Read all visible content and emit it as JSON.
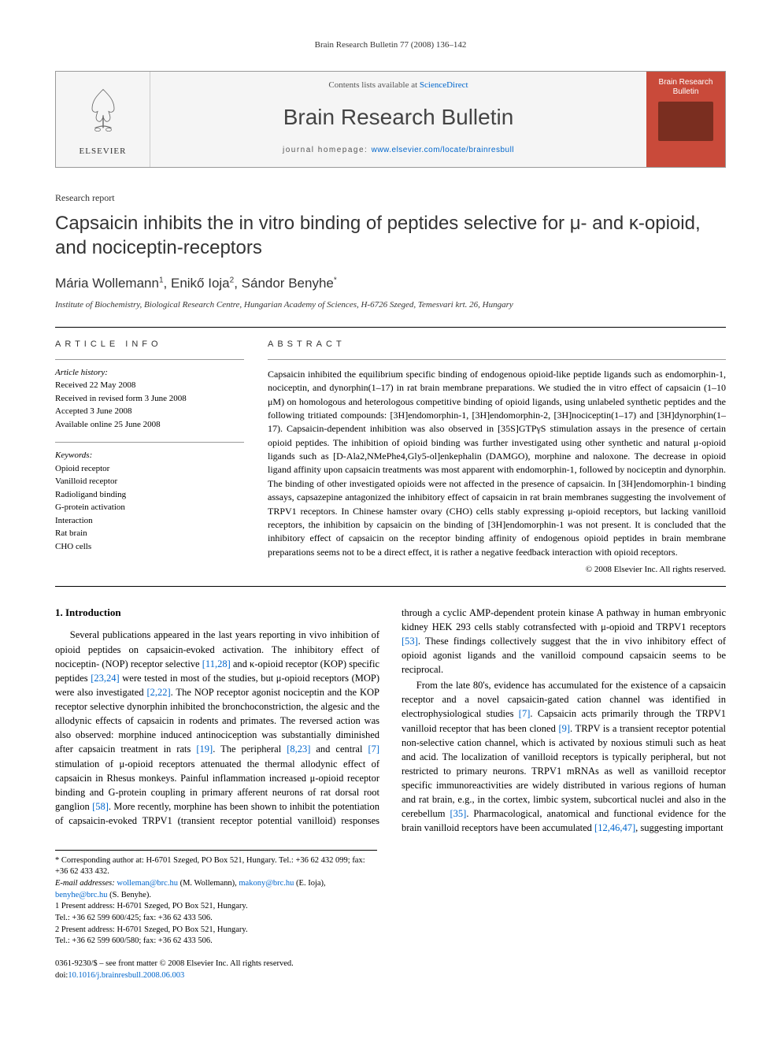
{
  "running_header": "Brain Research Bulletin 77 (2008) 136–142",
  "masthead": {
    "contents_prefix": "Contents lists available at ",
    "contents_link": "ScienceDirect",
    "journal_title": "Brain Research Bulletin",
    "homepage_prefix": "journal homepage: ",
    "homepage_link": "www.elsevier.com/locate/brainresbull",
    "publisher": "ELSEVIER",
    "cover_line1": "Brain Research",
    "cover_line2": "Bulletin"
  },
  "article": {
    "type": "Research report",
    "title": "Capsaicin inhibits the in vitro binding of peptides selective for μ- and κ-opioid, and nociceptin-receptors",
    "authors_html": "Mária Wollemann<sup>1</sup>, Enikő Ioja<sup>2</sup>, Sándor Benyhe<sup>*</sup>",
    "affiliation": "Institute of Biochemistry, Biological Research Centre, Hungarian Academy of Sciences, H-6726 Szeged, Temesvari krt. 26, Hungary"
  },
  "info": {
    "label": "ARTICLE INFO",
    "history_label": "Article history:",
    "history": [
      "Received 22 May 2008",
      "Received in revised form 3 June 2008",
      "Accepted 3 June 2008",
      "Available online 25 June 2008"
    ],
    "keywords_label": "Keywords:",
    "keywords": [
      "Opioid receptor",
      "Vanilloid receptor",
      "Radioligand binding",
      "G-protein activation",
      "Interaction",
      "Rat brain",
      "CHO cells"
    ]
  },
  "abstract": {
    "label": "ABSTRACT",
    "text": "Capsaicin inhibited the equilibrium specific binding of endogenous opioid-like peptide ligands such as endomorphin-1, nociceptin, and dynorphin(1–17) in rat brain membrane preparations. We studied the in vitro effect of capsaicin (1–10 μM) on homologous and heterologous competitive binding of opioid ligands, using unlabeled synthetic peptides and the following tritiated compounds: [3H]endomorphin-1, [3H]endomorphin-2, [3H]nociceptin(1–17) and [3H]dynorphin(1–17). Capsaicin-dependent inhibition was also observed in [35S]GTPγS stimulation assays in the presence of certain opioid peptides. The inhibition of opioid binding was further investigated using other synthetic and natural μ-opioid ligands such as [D-Ala2,NMePhe4,Gly5-ol]enkephalin (DAMGO), morphine and naloxone. The decrease in opioid ligand affinity upon capsaicin treatments was most apparent with endomorphin-1, followed by nociceptin and dynorphin. The binding of other investigated opioids were not affected in the presence of capsaicin. In [3H]endomorphin-1 binding assays, capsazepine antagonized the inhibitory effect of capsaicin in rat brain membranes suggesting the involvement of TRPV1 receptors. In Chinese hamster ovary (CHO) cells stably expressing μ-opioid receptors, but lacking vanilloid receptors, the inhibition by capsaicin on the binding of [3H]endomorphin-1 was not present. It is concluded that the inhibitory effect of capsaicin on the receptor binding affinity of endogenous opioid peptides in brain membrane preparations seems not to be a direct effect, it is rather a negative feedback interaction with opioid receptors.",
    "copyright": "© 2008 Elsevier Inc. All rights reserved."
  },
  "body": {
    "intro_heading": "1. Introduction",
    "para1_pre": "Several publications appeared in the last years reporting in vivo inhibition of opioid peptides on capsaicin-evoked activation. The inhibitory effect of nociceptin- (NOP) receptor selective ",
    "ref1": "[11,28]",
    "para1_mid1": " and κ-opioid receptor (KOP) specific peptides ",
    "ref2": "[23,24]",
    "para1_mid2": " were tested in most of the studies, but μ-opioid receptors (MOP) were also investigated ",
    "ref3": "[2,22]",
    "para1_mid3": ". The NOP receptor agonist nociceptin and the KOP receptor selective dynorphin inhibited the bronchoconstriction, the algesic and the allodynic effects of capsaicin in rodents and primates. The reversed action was also observed: morphine induced antinociception was substantially diminished after capsaicin treatment in rats ",
    "ref4": "[19]",
    "para1_mid4": ". The peripheral ",
    "ref5": "[8,23]",
    "para1_mid5": " and central ",
    "ref6": "[7]",
    "para1_mid6": " stimulation of μ-opioid receptors attenuated the thermal allodynic effect of ",
    "para1_cont": "capsaicin in Rhesus monkeys. Painful inflammation increased μ-opioid receptor binding and G-protein coupling in primary afferent neurons of rat dorsal root ganglion ",
    "ref7": "[58]",
    "para1_cont2": ". More recently, morphine has been shown to inhibit the potentiation of capsaicin-evoked TRPV1 (transient receptor potential vanilloid) responses through a cyclic AMP-dependent protein kinase A pathway in human embryonic kidney HEK 293 cells stably cotransfected with μ-opioid and TRPV1 receptors ",
    "ref8": "[53]",
    "para1_cont3": ". These findings collectively suggest that the in vivo inhibitory effect of opioid agonist ligands and the vanilloid compound capsaicin seems to be reciprocal.",
    "para2_pre": "From the late 80's, evidence has accumulated for the existence of a capsaicin receptor and a novel capsaicin-gated cation channel was identified in electrophysiological studies ",
    "ref9": "[7]",
    "para2_mid1": ". Capsaicin acts primarily through the TRPV1 vanilloid receptor that has been cloned ",
    "ref10": "[9]",
    "para2_mid2": ". TRPV is a transient receptor potential non-selective cation channel, which is activated by noxious stimuli such as heat and acid. The localization of vanilloid receptors is typically peripheral, but not restricted to primary neurons. TRPV1 mRNAs as well as vanilloid receptor specific immunoreactivities are widely distributed in various regions of human and rat brain, e.g., in the cortex, limbic system, subcortical nuclei and also in the cerebellum ",
    "ref11": "[35]",
    "para2_mid3": ". Pharmacological, anatomical and functional evidence for the brain vanilloid receptors have been accumulated ",
    "ref12": "[12,46,47]",
    "para2_mid4": ", suggesting important"
  },
  "footnotes": {
    "corr_label": "* Corresponding author at: H-6701 Szeged, PO Box 521, Hungary. Tel.: +36 62 432 099; fax: +36 62 433 432.",
    "email_label": "E-mail addresses:",
    "email1": "wolleman@brc.hu",
    "email1_who": " (M. Wollemann), ",
    "email2": "makony@brc.hu",
    "email2_who": " (E. Ioja), ",
    "email3": "benyhe@brc.hu",
    "email3_who": " (S. Benyhe).",
    "note1": "1 Present address: H-6701 Szeged, PO Box 521, Hungary.",
    "note1_tel": "Tel.: +36 62 599 600/425; fax: +36 62 433 506.",
    "note2": "2 Present address: H-6701 Szeged, PO Box 521, Hungary.",
    "note2_tel": "Tel.: +36 62 599 600/580; fax: +36 62 433 506."
  },
  "bottom": {
    "line1": "0361-9230/$ – see front matter © 2008 Elsevier Inc. All rights reserved.",
    "doi_prefix": "doi:",
    "doi": "10.1016/j.brainresbull.2008.06.003"
  },
  "colors": {
    "link": "#0066cc",
    "cover_bg": "#c94a3a",
    "rule": "#000000",
    "light_rule": "#999999"
  }
}
